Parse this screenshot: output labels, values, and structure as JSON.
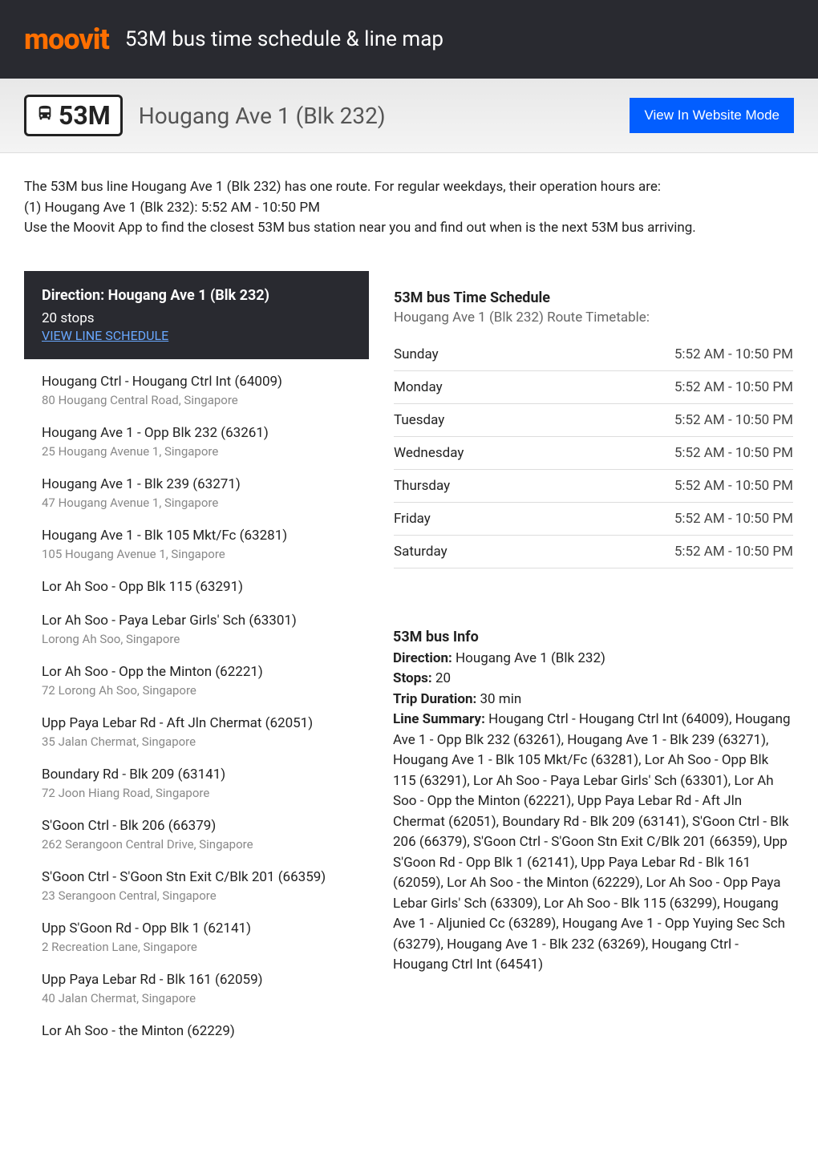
{
  "header": {
    "logo": "moovit",
    "title": "53M bus time schedule & line map"
  },
  "hero": {
    "line_number": "53M",
    "route_name": "Hougang Ave 1 (Blk 232)",
    "view_button": "View In Website Mode"
  },
  "intro": {
    "line1": "The 53M bus line Hougang Ave 1 (Blk 232) has one route. For regular weekdays, their operation hours are:",
    "line2": "(1) Hougang Ave 1 (Blk 232): 5:52 AM - 10:50 PM",
    "line3": "Use the Moovit App to find the closest 53M bus station near you and find out when is the next 53M bus arriving."
  },
  "direction": {
    "title": "Direction: Hougang Ave 1 (Blk 232)",
    "stops_count": "20 stops",
    "view_link": "VIEW LINE SCHEDULE"
  },
  "stops": [
    {
      "name": "Hougang Ctrl - Hougang Ctrl Int (64009)",
      "address": "80 Hougang Central Road, Singapore"
    },
    {
      "name": "Hougang Ave 1 - Opp Blk 232 (63261)",
      "address": "25 Hougang Avenue 1, Singapore"
    },
    {
      "name": "Hougang Ave 1 - Blk 239 (63271)",
      "address": "47 Hougang Avenue 1, Singapore"
    },
    {
      "name": "Hougang Ave 1 - Blk 105 Mkt/Fc (63281)",
      "address": "105 Hougang Avenue 1, Singapore"
    },
    {
      "name": "Lor Ah Soo - Opp Blk 115 (63291)",
      "address": ""
    },
    {
      "name": "Lor Ah Soo - Paya Lebar Girls' Sch (63301)",
      "address": "Lorong Ah Soo, Singapore"
    },
    {
      "name": "Lor Ah Soo - Opp the Minton (62221)",
      "address": "72 Lorong Ah Soo, Singapore"
    },
    {
      "name": "Upp Paya Lebar Rd - Aft Jln Chermat (62051)",
      "address": "35 Jalan Chermat, Singapore"
    },
    {
      "name": "Boundary Rd - Blk 209 (63141)",
      "address": "72 Joon Hiang Road, Singapore"
    },
    {
      "name": "S'Goon Ctrl - Blk 206 (66379)",
      "address": "262 Serangoon Central Drive, Singapore"
    },
    {
      "name": "S'Goon Ctrl - S'Goon Stn Exit C/Blk 201 (66359)",
      "address": "23 Serangoon Central, Singapore"
    },
    {
      "name": "Upp S'Goon Rd - Opp Blk 1 (62141)",
      "address": "2 Recreation Lane, Singapore"
    },
    {
      "name": "Upp Paya Lebar Rd - Blk 161 (62059)",
      "address": "40 Jalan Chermat, Singapore"
    },
    {
      "name": "Lor Ah Soo - the Minton (62229)",
      "address": ""
    }
  ],
  "schedule": {
    "title": "53M bus Time Schedule",
    "subtitle": "Hougang Ave 1 (Blk 232) Route Timetable:",
    "rows": [
      {
        "day": "Sunday",
        "hours": "5:52 AM - 10:50 PM"
      },
      {
        "day": "Monday",
        "hours": "5:52 AM - 10:50 PM"
      },
      {
        "day": "Tuesday",
        "hours": "5:52 AM - 10:50 PM"
      },
      {
        "day": "Wednesday",
        "hours": "5:52 AM - 10:50 PM"
      },
      {
        "day": "Thursday",
        "hours": "5:52 AM - 10:50 PM"
      },
      {
        "day": "Friday",
        "hours": "5:52 AM - 10:50 PM"
      },
      {
        "day": "Saturday",
        "hours": "5:52 AM - 10:50 PM"
      }
    ]
  },
  "info": {
    "title": "53M bus Info",
    "direction_label": "Direction:",
    "direction_value": " Hougang Ave 1 (Blk 232)",
    "stops_label": "Stops:",
    "stops_value": " 20",
    "duration_label": "Trip Duration:",
    "duration_value": " 30 min",
    "summary_label": "Line Summary:",
    "summary_value": " Hougang Ctrl - Hougang Ctrl Int (64009), Hougang Ave 1 - Opp Blk 232 (63261), Hougang Ave 1 - Blk 239 (63271), Hougang Ave 1 - Blk 105 Mkt/Fc (63281), Lor Ah Soo - Opp Blk 115 (63291), Lor Ah Soo - Paya Lebar Girls' Sch (63301), Lor Ah Soo - Opp the Minton (62221), Upp Paya Lebar Rd - Aft Jln Chermat (62051), Boundary Rd - Blk 209 (63141), S'Goon Ctrl - Blk 206 (66379), S'Goon Ctrl - S'Goon Stn Exit C/Blk 201 (66359), Upp S'Goon Rd - Opp Blk 1 (62141), Upp Paya Lebar Rd - Blk 161 (62059), Lor Ah Soo - the Minton (62229), Lor Ah Soo - Opp Paya Lebar Girls' Sch (63309), Lor Ah Soo - Blk 115 (63299), Hougang Ave 1 - Aljunied Cc (63289), Hougang Ave 1 - Opp Yuying Sec Sch (63279), Hougang Ave 1 - Blk 232 (63269), Hougang Ctrl - Hougang Ctrl Int (64541)"
  },
  "colors": {
    "brand_orange": "#ff6f00",
    "dark_bg": "#292a30",
    "link_blue": "#69a8ff",
    "button_blue": "#025eff"
  }
}
